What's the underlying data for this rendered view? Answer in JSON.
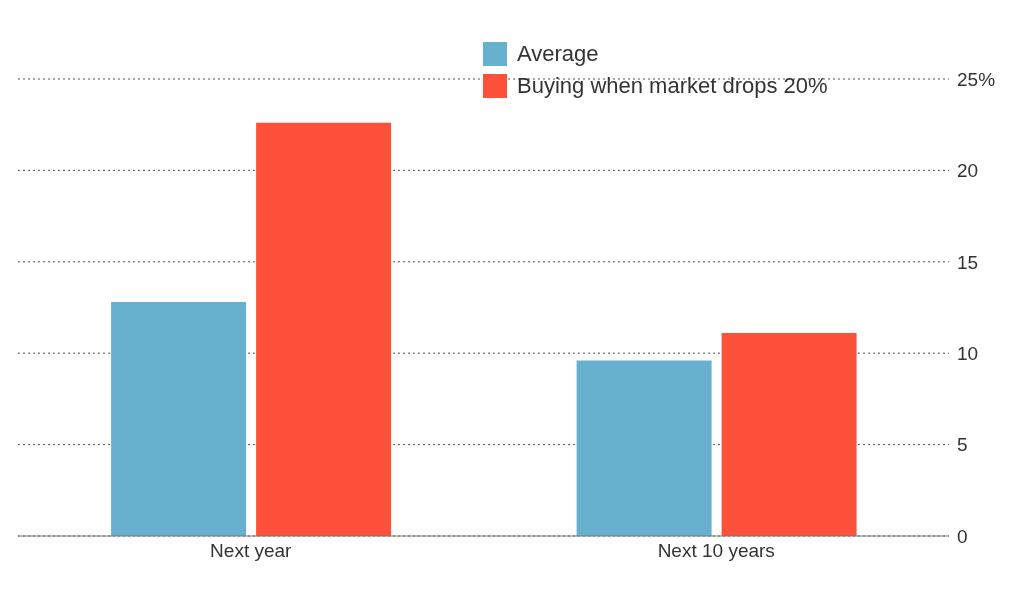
{
  "chart_data": {
    "type": "bar",
    "categories": [
      "Next year",
      "Next 10 years"
    ],
    "series": [
      {
        "name": "Average",
        "color": "#67b1cf",
        "values": [
          12.8,
          9.6
        ]
      },
      {
        "name": "Buying when market drops 20%",
        "color": "#fd513a",
        "values": [
          22.6,
          11.1
        ]
      }
    ],
    "ylim": [
      0,
      25
    ],
    "yticks": [
      0,
      5,
      10,
      15,
      20,
      {
        "value": 25,
        "label": "25%"
      }
    ],
    "grid": "y",
    "legend": "top"
  }
}
